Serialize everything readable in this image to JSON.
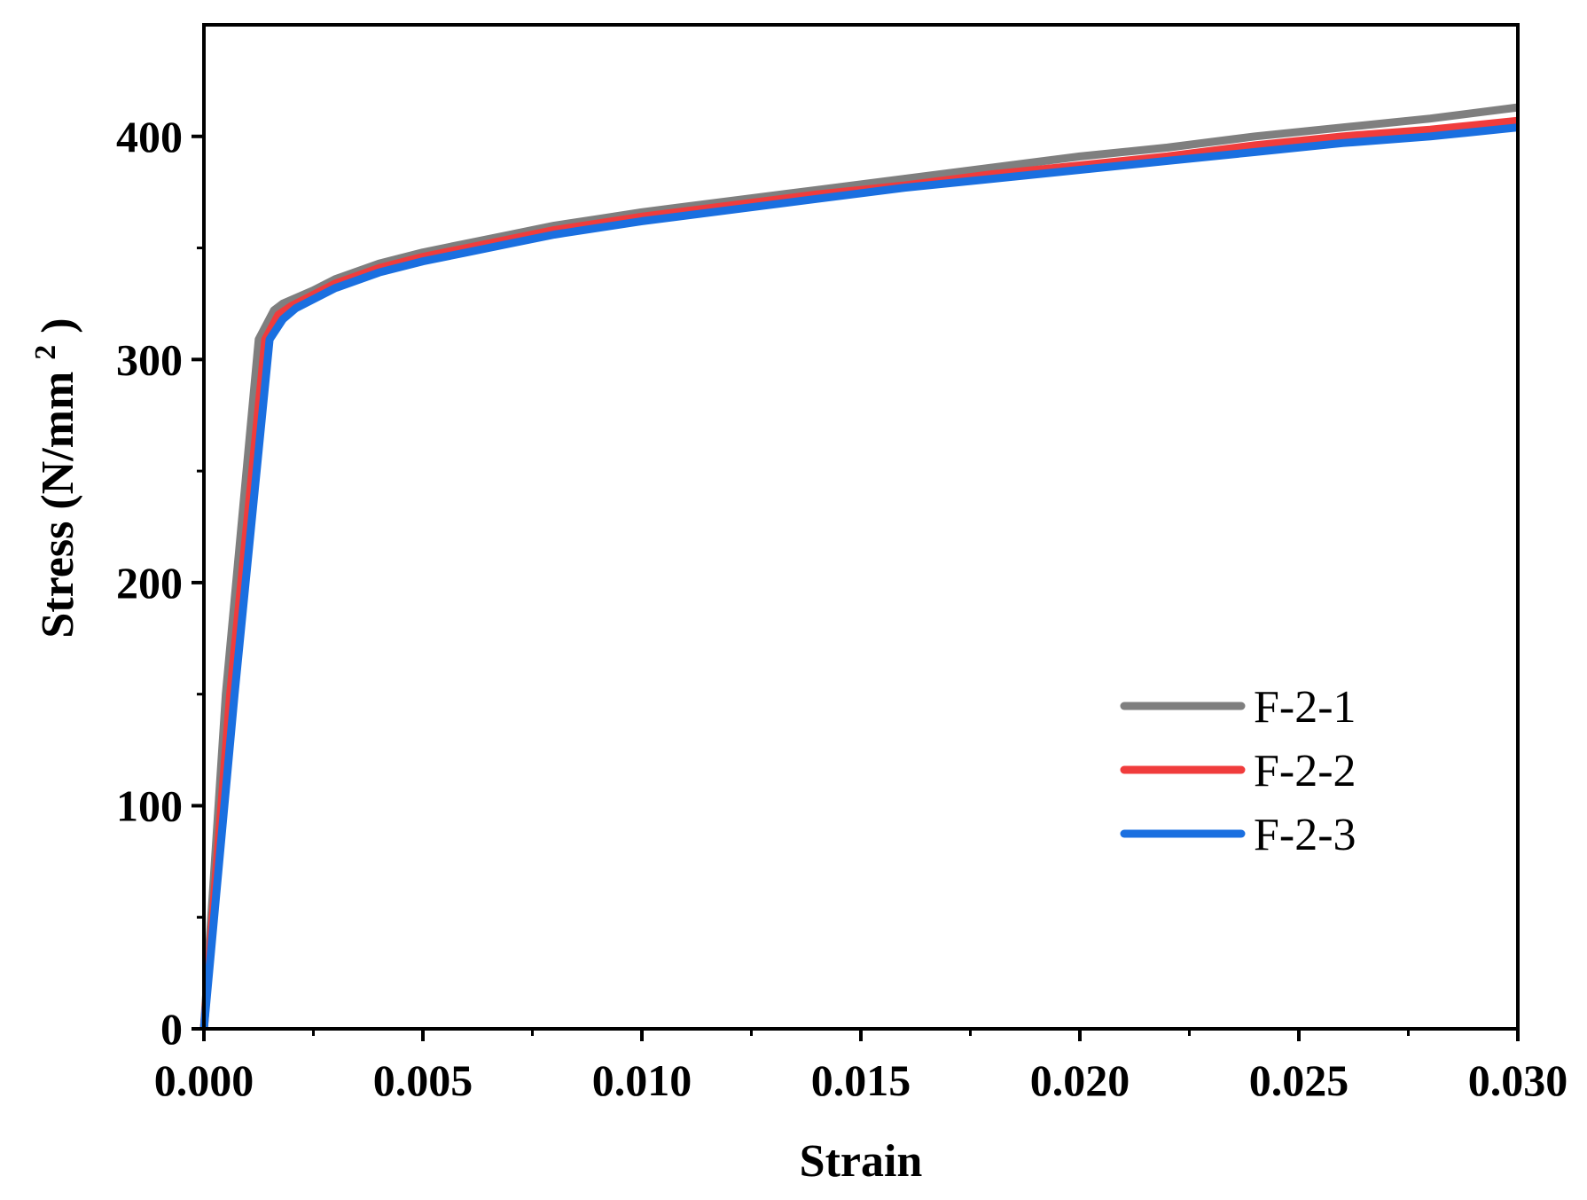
{
  "chart_data": {
    "type": "line",
    "title": "",
    "xlabel": "Strain",
    "ylabel": {
      "main": "Stress (N/mm",
      "sup": "2",
      "close": ")"
    },
    "xlim": [
      0,
      0.03
    ],
    "ylim": [
      0,
      450
    ],
    "x_ticks": [
      0,
      0.005,
      0.01,
      0.015,
      0.02,
      0.025,
      0.03
    ],
    "x_tick_labels": [
      "0.000",
      "0.005",
      "0.010",
      "0.015",
      "0.020",
      "0.025",
      "0.030"
    ],
    "y_ticks": [
      0,
      100,
      200,
      300,
      400
    ],
    "y_tick_labels": [
      "0",
      "100",
      "200",
      "300",
      "400"
    ],
    "grid": false,
    "legend_position": "bottom-right",
    "series": [
      {
        "name": "F-2-1",
        "color": "#7f7f7f",
        "points": [
          [
            0,
            0
          ],
          [
            0.0005,
            150
          ],
          [
            0.00125,
            309
          ],
          [
            0.0016,
            322
          ],
          [
            0.0018,
            325
          ],
          [
            0.0025,
            331
          ],
          [
            0.003,
            336
          ],
          [
            0.004,
            343
          ],
          [
            0.005,
            348
          ],
          [
            0.006,
            352
          ],
          [
            0.007,
            356
          ],
          [
            0.008,
            360
          ],
          [
            0.009,
            363
          ],
          [
            0.01,
            366
          ],
          [
            0.012,
            371
          ],
          [
            0.014,
            376
          ],
          [
            0.016,
            381
          ],
          [
            0.018,
            386
          ],
          [
            0.02,
            391
          ],
          [
            0.022,
            395
          ],
          [
            0.024,
            400
          ],
          [
            0.026,
            404
          ],
          [
            0.028,
            408
          ],
          [
            0.03,
            413
          ]
        ]
      },
      {
        "name": "F-2-2",
        "color": "#f03c3c",
        "points": [
          [
            0,
            0
          ],
          [
            0.0006,
            150
          ],
          [
            0.0014,
            309
          ],
          [
            0.0017,
            320
          ],
          [
            0.002,
            324
          ],
          [
            0.0025,
            329
          ],
          [
            0.003,
            334
          ],
          [
            0.004,
            341
          ],
          [
            0.005,
            346
          ],
          [
            0.006,
            350
          ],
          [
            0.007,
            354
          ],
          [
            0.008,
            358
          ],
          [
            0.009,
            361
          ],
          [
            0.01,
            364
          ],
          [
            0.012,
            369
          ],
          [
            0.014,
            374
          ],
          [
            0.016,
            378
          ],
          [
            0.018,
            383
          ],
          [
            0.02,
            387
          ],
          [
            0.022,
            391
          ],
          [
            0.024,
            396
          ],
          [
            0.026,
            400
          ],
          [
            0.028,
            403
          ],
          [
            0.03,
            407
          ]
        ]
      },
      {
        "name": "F-2-3",
        "color": "#1a6fe0",
        "points": [
          [
            0,
            0
          ],
          [
            0.0007,
            150
          ],
          [
            0.0015,
            309
          ],
          [
            0.0018,
            318
          ],
          [
            0.0021,
            323
          ],
          [
            0.0025,
            327
          ],
          [
            0.003,
            332
          ],
          [
            0.004,
            339
          ],
          [
            0.005,
            344
          ],
          [
            0.006,
            348
          ],
          [
            0.007,
            352
          ],
          [
            0.008,
            356
          ],
          [
            0.009,
            359
          ],
          [
            0.01,
            362
          ],
          [
            0.012,
            367
          ],
          [
            0.014,
            372
          ],
          [
            0.016,
            377
          ],
          [
            0.018,
            381
          ],
          [
            0.02,
            385
          ],
          [
            0.022,
            389
          ],
          [
            0.024,
            393
          ],
          [
            0.026,
            397
          ],
          [
            0.028,
            400
          ],
          [
            0.03,
            404
          ]
        ]
      }
    ]
  }
}
